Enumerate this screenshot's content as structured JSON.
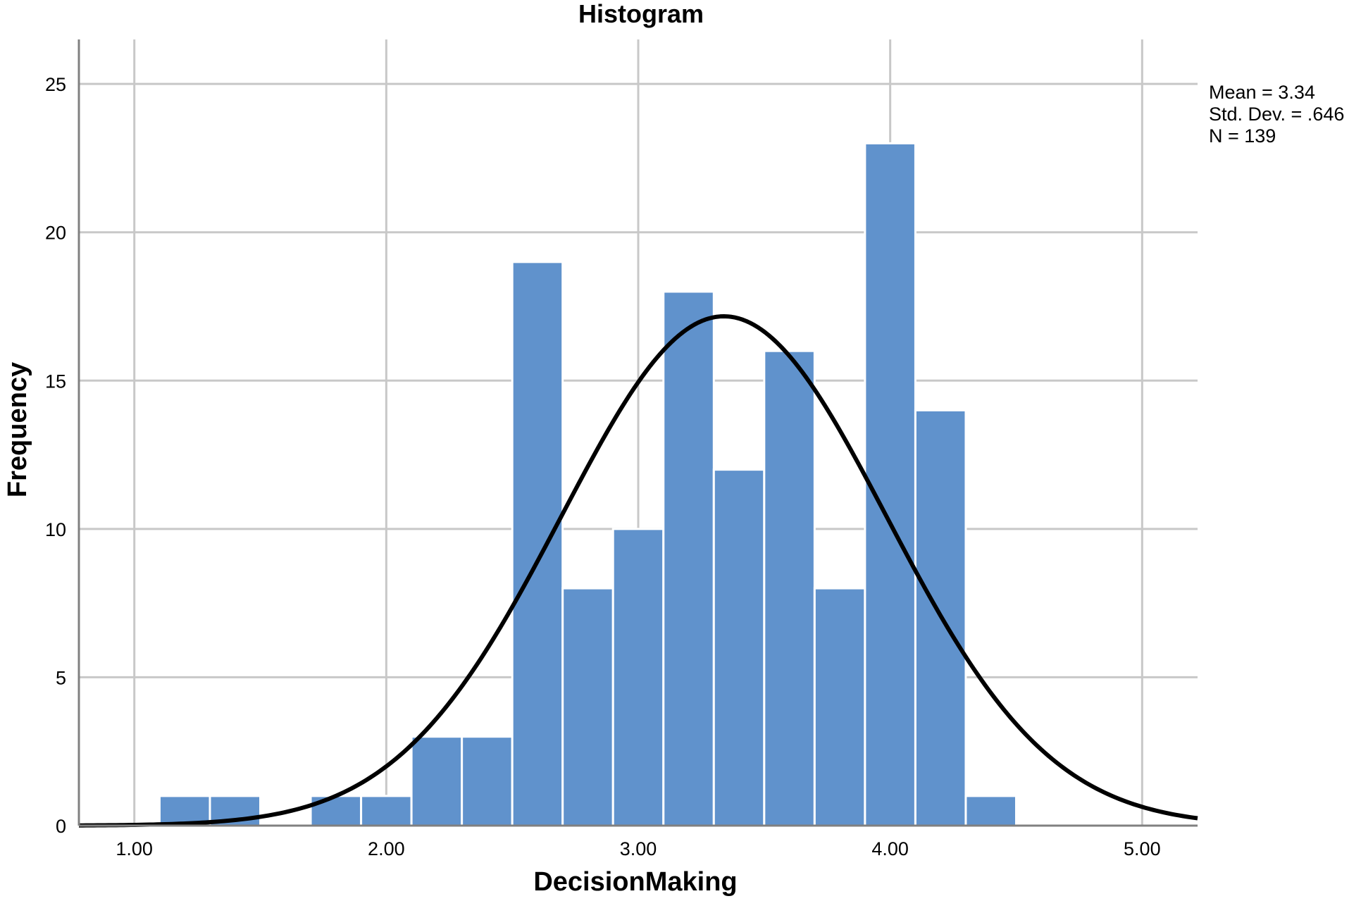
{
  "chart_data": {
    "type": "bar",
    "subtype": "histogram",
    "title": "Histogram",
    "xlabel": "DecisionMaking",
    "ylabel": "Frequency",
    "xlim": [
      0.78,
      5.22
    ],
    "ylim": [
      0,
      26.5
    ],
    "x_ticks": [
      1,
      2,
      3,
      4,
      5
    ],
    "x_tick_labels": [
      "1.00",
      "2.00",
      "3.00",
      "4.00",
      "5.00"
    ],
    "y_ticks": [
      0,
      5,
      10,
      15,
      20,
      25
    ],
    "y_tick_labels": [
      "0",
      "5",
      "10",
      "15",
      "20",
      "25"
    ],
    "grid": true,
    "bin_width": 0.2,
    "bins": [
      {
        "start": 1.1,
        "end": 1.3,
        "count": 1
      },
      {
        "start": 1.3,
        "end": 1.5,
        "count": 1
      },
      {
        "start": 1.5,
        "end": 1.7,
        "count": 0
      },
      {
        "start": 1.7,
        "end": 1.9,
        "count": 1
      },
      {
        "start": 1.9,
        "end": 2.1,
        "count": 1
      },
      {
        "start": 2.1,
        "end": 2.3,
        "count": 3
      },
      {
        "start": 2.3,
        "end": 2.5,
        "count": 3
      },
      {
        "start": 2.5,
        "end": 2.7,
        "count": 19
      },
      {
        "start": 2.7,
        "end": 2.9,
        "count": 8
      },
      {
        "start": 2.9,
        "end": 3.1,
        "count": 10
      },
      {
        "start": 3.1,
        "end": 3.3,
        "count": 18
      },
      {
        "start": 3.3,
        "end": 3.5,
        "count": 12
      },
      {
        "start": 3.5,
        "end": 3.7,
        "count": 16
      },
      {
        "start": 3.7,
        "end": 3.9,
        "count": 8
      },
      {
        "start": 3.9,
        "end": 4.1,
        "count": 23
      },
      {
        "start": 4.1,
        "end": 4.3,
        "count": 14
      },
      {
        "start": 4.3,
        "end": 4.5,
        "count": 1
      }
    ],
    "normal_curve": {
      "mean": 3.34,
      "std_dev": 0.646,
      "n": 139
    },
    "legend": {
      "position": "right",
      "lines": [
        "Mean = 3.34",
        "Std. Dev. = .646",
        "N = 139"
      ]
    },
    "colors": {
      "bar": "#6092cc",
      "bar_edge": "#ffffff",
      "curve": "#000000",
      "grid": "#c8c8c8",
      "axis": "#808080"
    }
  }
}
